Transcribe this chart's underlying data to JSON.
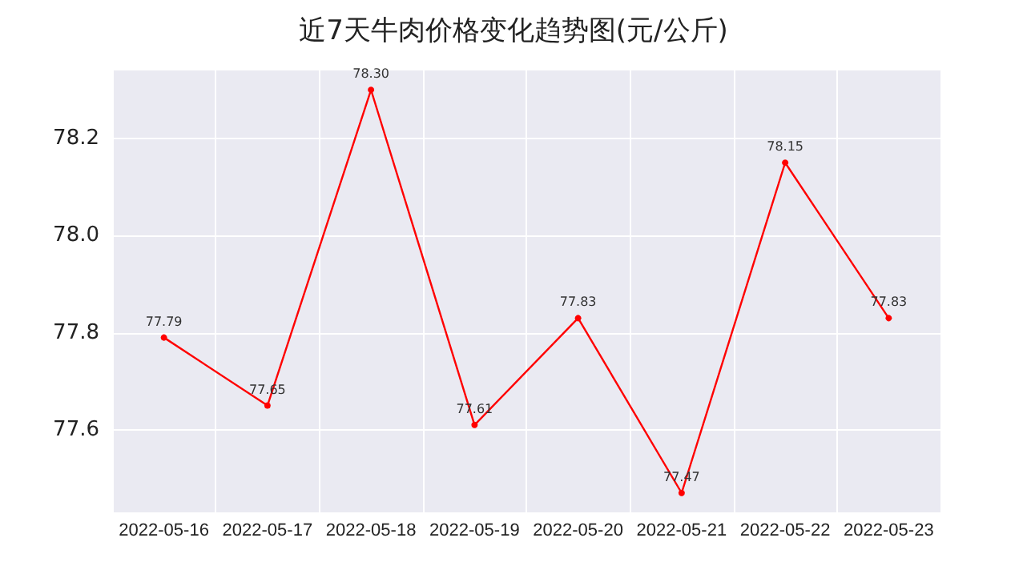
{
  "chart_data": {
    "type": "line",
    "title": "近7天牛肉价格变化趋势图(元/公斤)",
    "categories": [
      "2022-05-16",
      "2022-05-17",
      "2022-05-18",
      "2022-05-19",
      "2022-05-20",
      "2022-05-21",
      "2022-05-22",
      "2022-05-23"
    ],
    "values": [
      77.79,
      77.65,
      78.3,
      77.61,
      77.83,
      77.47,
      78.15,
      77.83
    ],
    "value_labels": [
      "77.79",
      "77.65",
      "78.30",
      "77.61",
      "77.83",
      "77.47",
      "78.15",
      "77.83"
    ],
    "color": "#ff0000",
    "ylim": [
      77.43,
      78.34
    ],
    "yticks": [
      77.6,
      77.8,
      {
        "value": 78,
        "label": "78.0"
      },
      78.2
    ],
    "grid": true,
    "marker": "circle",
    "line_style": "solid"
  }
}
